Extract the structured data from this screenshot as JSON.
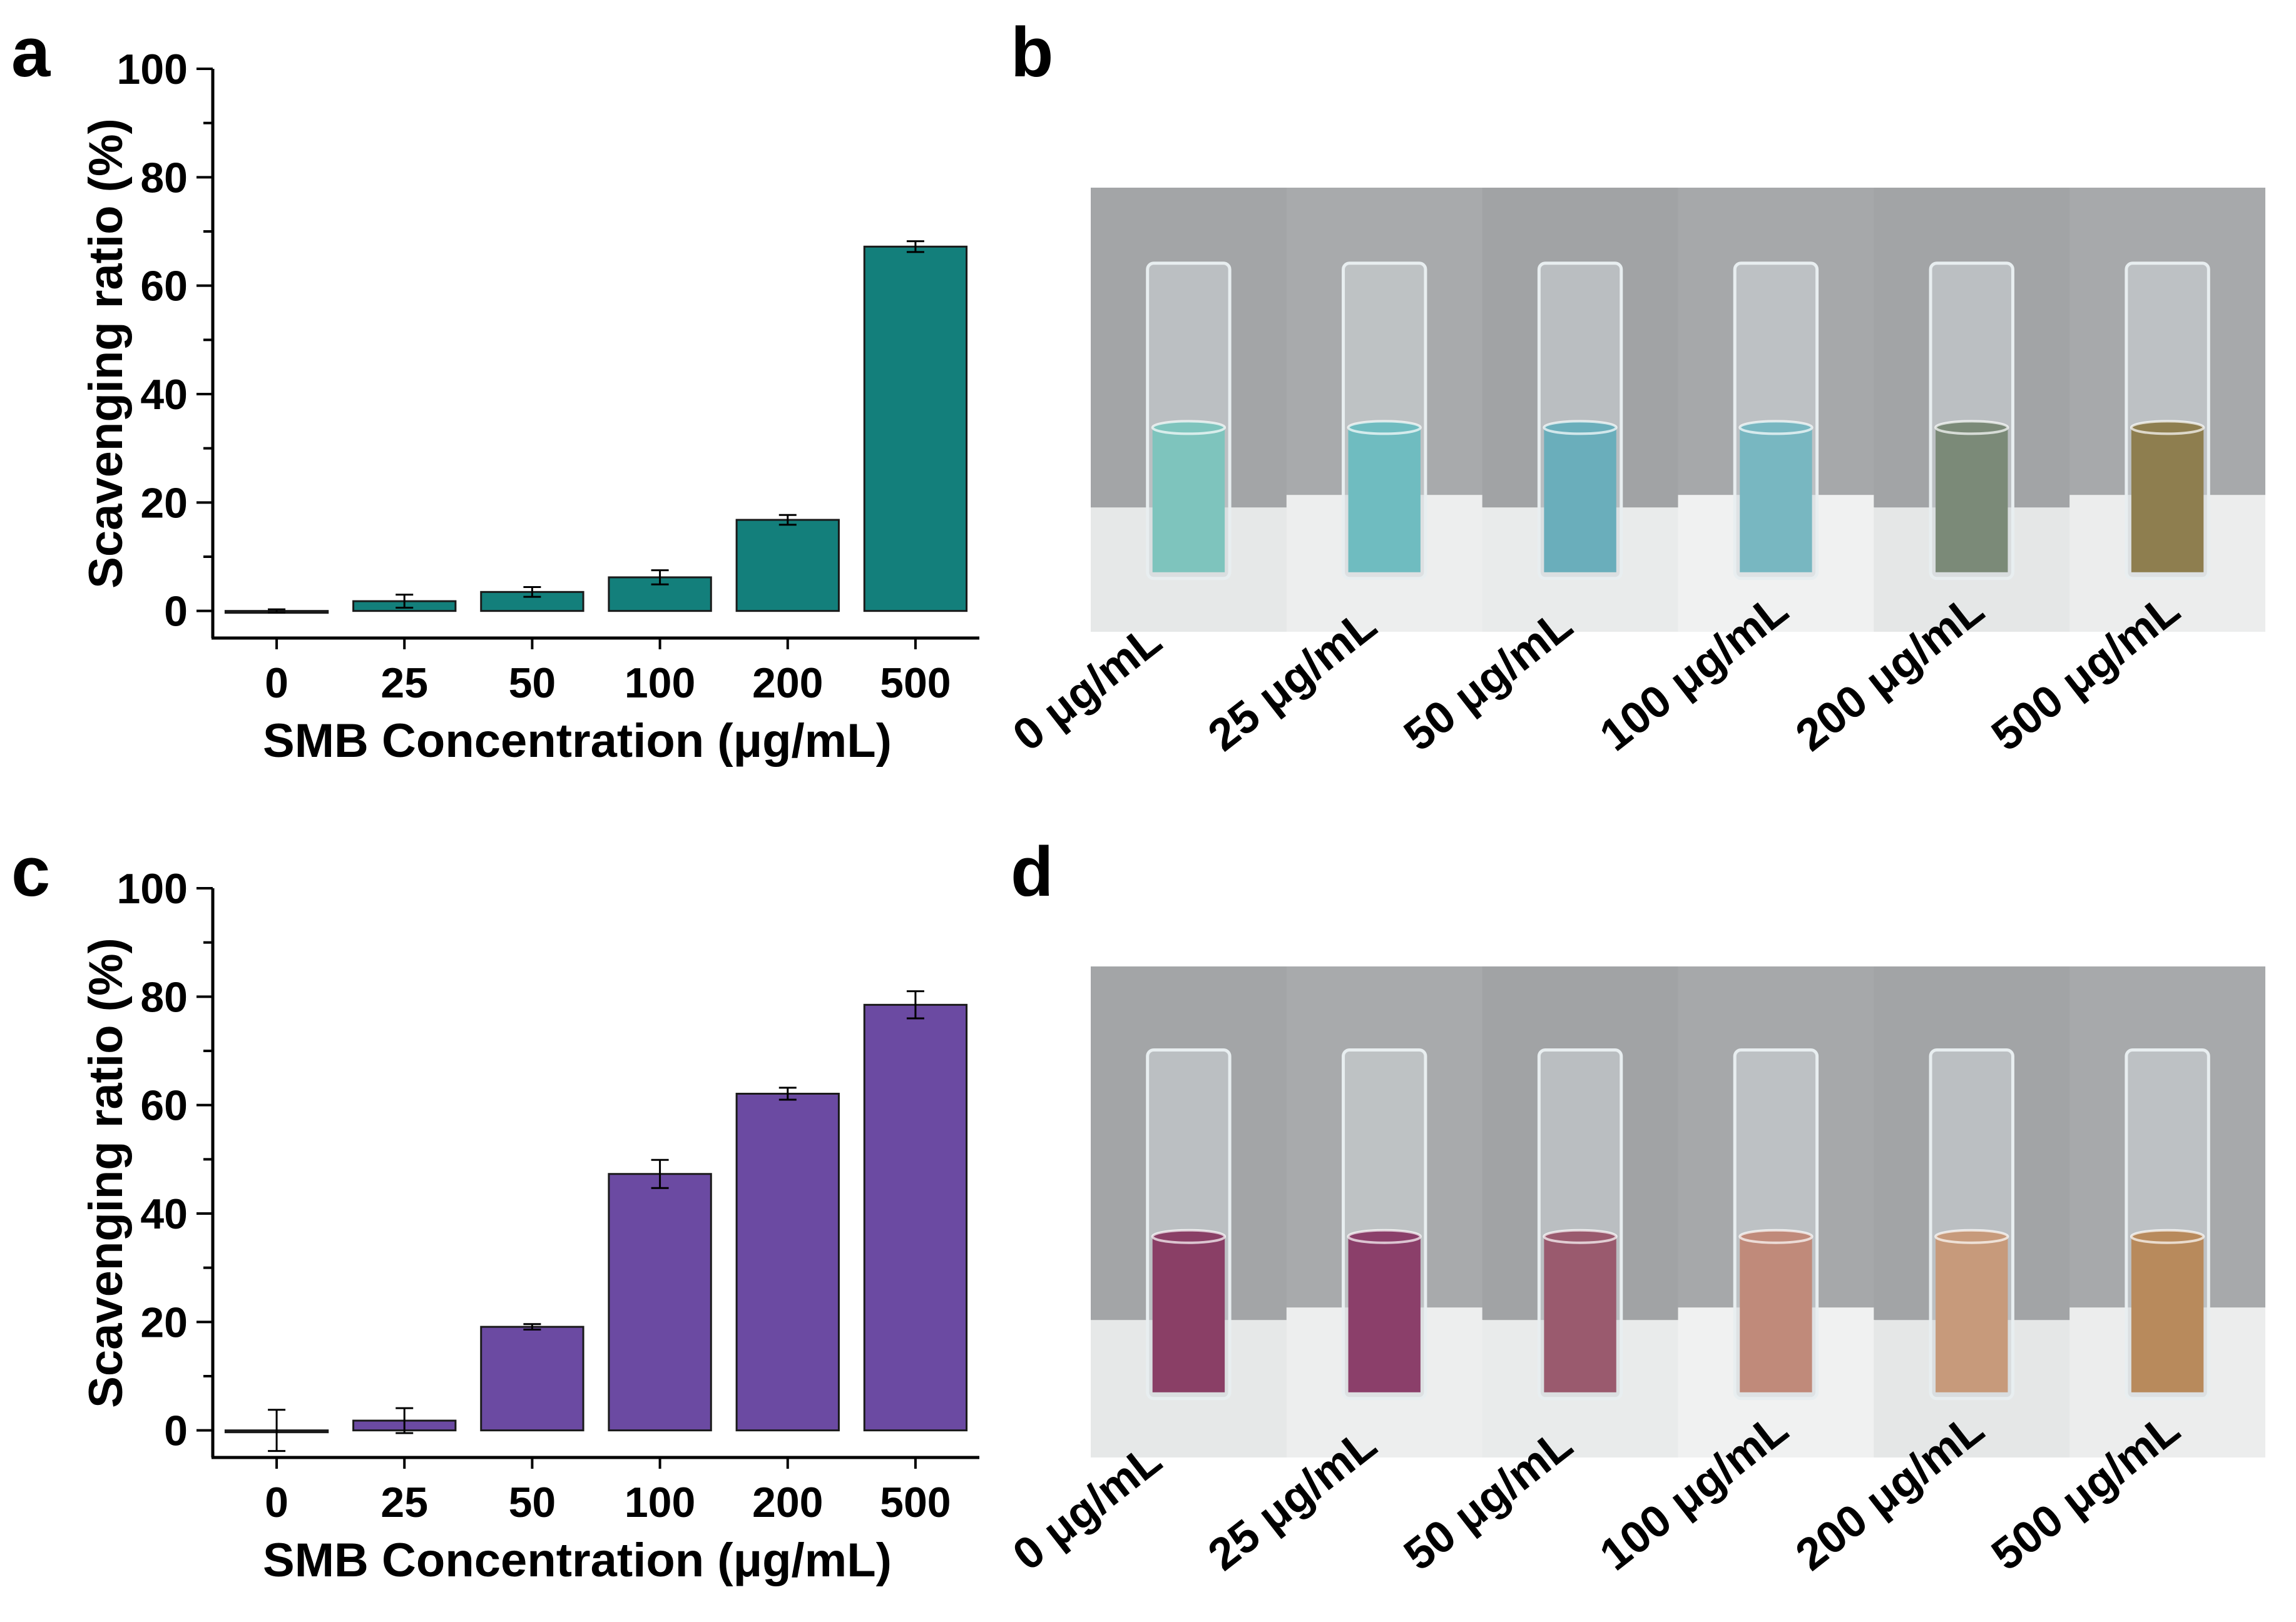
{
  "panels": {
    "a": "a",
    "b": "b",
    "c": "c",
    "d": "d"
  },
  "chart_data": [
    {
      "type": "bar",
      "panel": "a",
      "categories": [
        "0",
        "25",
        "50",
        "100",
        "200",
        "500"
      ],
      "values": [
        0,
        1.8,
        3.5,
        6.2,
        16.8,
        67.2
      ],
      "errors": [
        0.3,
        1.2,
        0.9,
        1.3,
        0.9,
        1.0
      ],
      "bar_color": "#137f7b",
      "title": "",
      "xlabel": "SMB Concentration (μg/mL)",
      "ylabel": "Scavenging ratio (%)",
      "ylim": [
        -5,
        100
      ],
      "yticks": [
        0,
        20,
        40,
        60,
        80,
        100
      ]
    },
    {
      "type": "bar",
      "panel": "c",
      "categories": [
        "0",
        "25",
        "50",
        "100",
        "200",
        "500"
      ],
      "values": [
        0,
        1.8,
        19.1,
        47.3,
        62.1,
        78.5
      ],
      "errors": [
        3.8,
        2.3,
        0.5,
        2.6,
        1.1,
        2.5
      ],
      "bar_color": "#6b4aa2",
      "title": "",
      "xlabel": "SMB Concentration (μg/mL)",
      "ylabel": "Scavenging ratio (%)",
      "ylim": [
        -5,
        100
      ],
      "yticks": [
        0,
        20,
        40,
        60,
        80,
        100
      ]
    }
  ],
  "photo_b": {
    "labels": [
      "0 μg/mL",
      "25 μg/mL",
      "50 μg/mL",
      "100 μg/mL",
      "200 μg/mL",
      "500 μg/mL"
    ],
    "liquid_colors": [
      "#7ec4bd",
      "#6fbcc0",
      "#6aaebb",
      "#78b7c1",
      "#7b8a78",
      "#8e7e4f"
    ]
  },
  "photo_d": {
    "labels": [
      "0 μg/mL",
      "25 μg/mL",
      "50 μg/mL",
      "100 μg/mL",
      "200 μg/mL",
      "500 μg/mL"
    ],
    "liquid_colors": [
      "#8a3f66",
      "#8b3f6a",
      "#9a5a6e",
      "#c08a7a",
      "#c79a7b",
      "#b88a5c"
    ]
  }
}
